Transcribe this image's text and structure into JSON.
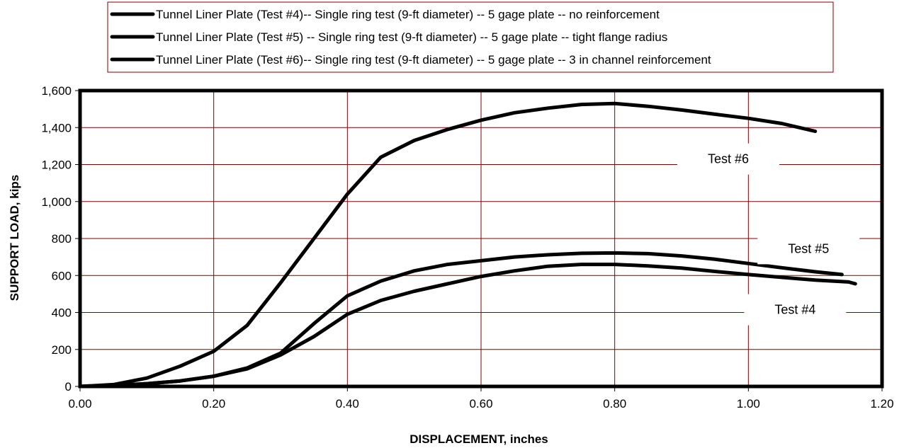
{
  "chart_data": {
    "type": "line",
    "title": "",
    "xlabel": "DISPLACEMENT, inches",
    "ylabel": "SUPPORT LOAD, kips",
    "xlim": [
      0,
      1.2
    ],
    "ylim": [
      0,
      1600
    ],
    "x_ticks": [
      "0.00",
      "0.20",
      "0.40",
      "0.60",
      "0.80",
      "1.00",
      "1.20"
    ],
    "y_ticks": [
      "0",
      "200",
      "400",
      "600",
      "800",
      "1,000",
      "1,200",
      "1,400",
      "1,600"
    ],
    "grid": true,
    "grid_color": "#800000",
    "legend_position": "top",
    "line_color": "#000000",
    "series": [
      {
        "name": "Tunnel Liner Plate (Test #4)-- Single ring test (9-ft diameter) -- 5 gage plate -- no reinforcement",
        "x": [
          0,
          0.05,
          0.1,
          0.15,
          0.2,
          0.25,
          0.3,
          0.35,
          0.4,
          0.45,
          0.5,
          0.55,
          0.6,
          0.65,
          0.7,
          0.75,
          0.8,
          0.85,
          0.9,
          0.95,
          1.0,
          1.05,
          1.1,
          1.15,
          1.16
        ],
        "y": [
          0,
          5,
          15,
          30,
          55,
          95,
          170,
          270,
          390,
          465,
          515,
          555,
          595,
          625,
          650,
          660,
          660,
          652,
          640,
          622,
          605,
          590,
          575,
          565,
          555
        ]
      },
      {
        "name": "Tunnel Liner Plate (Test #5) -- Single ring test (9-ft diameter) -- 5 gage plate -- tight flange radius",
        "x": [
          0,
          0.05,
          0.1,
          0.15,
          0.2,
          0.25,
          0.3,
          0.35,
          0.4,
          0.45,
          0.5,
          0.55,
          0.6,
          0.65,
          0.7,
          0.75,
          0.8,
          0.85,
          0.9,
          0.95,
          1.0,
          1.05,
          1.1,
          1.14
        ],
        "y": [
          0,
          5,
          15,
          30,
          55,
          100,
          180,
          340,
          490,
          570,
          625,
          660,
          680,
          700,
          712,
          720,
          722,
          718,
          706,
          688,
          665,
          642,
          620,
          605
        ]
      },
      {
        "name": "Tunnel Liner Plate (Test #6)-- Single ring test (9-ft diameter) -- 5 gage plate -- 3 in channel reinforcement",
        "x": [
          0,
          0.05,
          0.1,
          0.15,
          0.2,
          0.25,
          0.3,
          0.35,
          0.4,
          0.45,
          0.5,
          0.55,
          0.6,
          0.65,
          0.7,
          0.75,
          0.8,
          0.85,
          0.9,
          0.95,
          1.0,
          1.05,
          1.1
        ],
        "y": [
          0,
          10,
          45,
          110,
          190,
          330,
          560,
          800,
          1040,
          1240,
          1330,
          1390,
          1440,
          1480,
          1505,
          1525,
          1530,
          1515,
          1495,
          1472,
          1450,
          1422,
          1380
        ]
      }
    ],
    "annotations": [
      {
        "text": "Test #6",
        "x": 0.97,
        "y": 1230
      },
      {
        "text": "Test #5",
        "x": 1.09,
        "y": 745
      },
      {
        "text": "Test #4",
        "x": 1.07,
        "y": 415
      }
    ]
  }
}
